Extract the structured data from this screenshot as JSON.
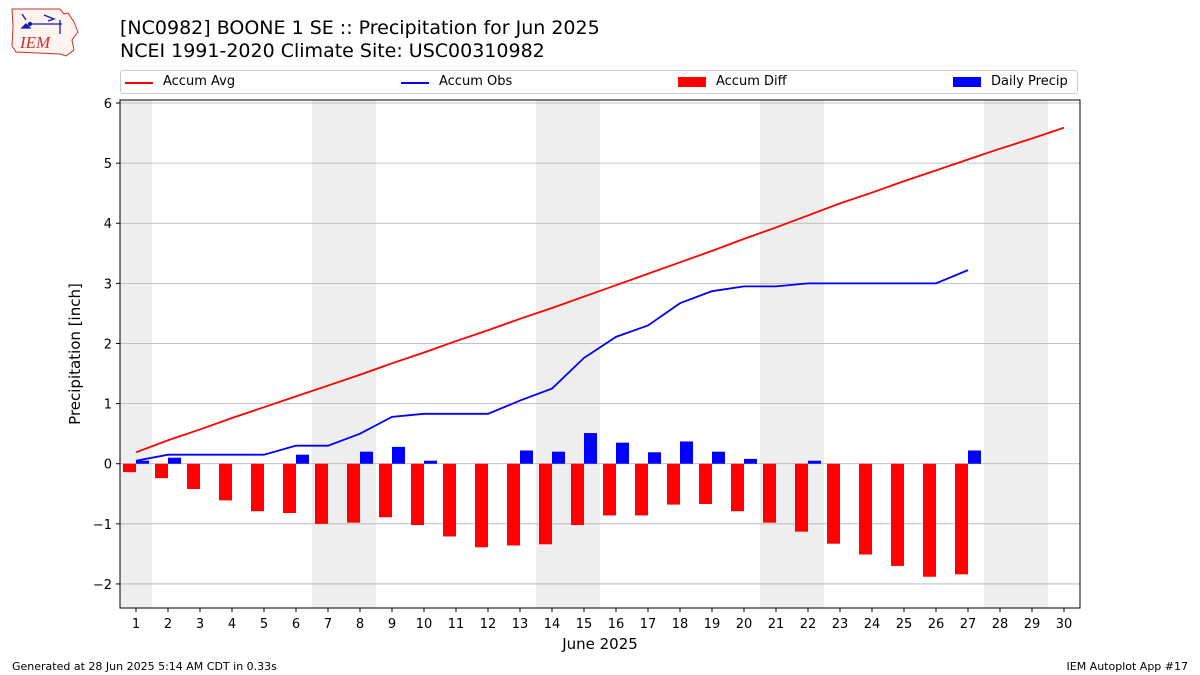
{
  "header": {
    "title_line1": "[NC0982] BOONE 1 SE :: Precipitation for Jun 2025",
    "title_line2": "NCEI 1991-2020 Climate Site: USC00310982",
    "logo_text": "IEM"
  },
  "colors": {
    "accum_avg": "#ff0000",
    "accum_obs": "#0000ff",
    "accum_diff": "#ff0000",
    "daily_precip": "#0000ff",
    "weekend_shade": "#eeeeee",
    "grid": "#b0b0b0"
  },
  "chart_data": {
    "type": "bar",
    "title": "[NC0982] BOONE 1 SE :: Precipitation for Jun 2025",
    "subtitle": "NCEI 1991-2020 Climate Site: USC00310982",
    "xlabel": "June 2025",
    "ylabel": "Precipitation [inch]",
    "ylim": [
      -2.4,
      6.05
    ],
    "xlim": [
      0.5,
      30.5
    ],
    "yticks": [
      -2,
      -1,
      0,
      1,
      2,
      3,
      4,
      5,
      6
    ],
    "ytick_labels": [
      "−2",
      "−1",
      "0",
      "1",
      "2",
      "3",
      "4",
      "5",
      "6"
    ],
    "categories": [
      "1",
      "2",
      "3",
      "4",
      "5",
      "6",
      "7",
      "8",
      "9",
      "10",
      "11",
      "12",
      "13",
      "14",
      "15",
      "16",
      "17",
      "18",
      "19",
      "20",
      "21",
      "22",
      "23",
      "24",
      "25",
      "26",
      "27",
      "28",
      "29",
      "30"
    ],
    "grid": true,
    "legend_position": "top",
    "weekend_shading": [
      [
        0.5,
        1.5
      ],
      [
        6.5,
        8.5
      ],
      [
        13.5,
        15.5
      ],
      [
        20.5,
        22.5
      ],
      [
        27.5,
        29.5
      ]
    ],
    "legend": [
      "Accum Avg",
      "Accum Obs",
      "Accum Diff",
      "Daily Precip"
    ],
    "series": [
      {
        "name": "Accum Avg",
        "kind": "line",
        "values": [
          0.19,
          0.39,
          0.57,
          0.76,
          0.94,
          1.12,
          1.3,
          1.48,
          1.67,
          1.85,
          2.04,
          2.22,
          2.41,
          2.59,
          2.78,
          2.97,
          3.16,
          3.35,
          3.54,
          3.74,
          3.93,
          4.13,
          4.33,
          4.51,
          4.7,
          4.88,
          5.06,
          5.24,
          5.41,
          5.59
        ]
      },
      {
        "name": "Accum Obs",
        "kind": "line",
        "values": [
          0.05,
          0.15,
          0.15,
          0.15,
          0.15,
          0.3,
          0.3,
          0.5,
          0.78,
          0.83,
          0.83,
          0.83,
          1.05,
          1.25,
          1.76,
          2.11,
          2.3,
          2.67,
          2.87,
          2.95,
          2.95,
          3.0,
          3.0,
          3.0,
          3.0,
          3.0,
          3.22,
          null,
          null,
          null
        ]
      },
      {
        "name": "Accum Diff",
        "kind": "bar",
        "values": [
          -0.14,
          -0.24,
          -0.42,
          -0.61,
          -0.79,
          -0.82,
          -1.0,
          -0.98,
          -0.89,
          -1.02,
          -1.21,
          -1.39,
          -1.36,
          -1.34,
          -1.02,
          -0.86,
          -0.86,
          -0.68,
          -0.67,
          -0.79,
          -0.98,
          -1.13,
          -1.33,
          -1.51,
          -1.7,
          -1.88,
          -1.84,
          null,
          null,
          null
        ]
      },
      {
        "name": "Daily Precip",
        "kind": "bar",
        "values": [
          0.05,
          0.1,
          0.0,
          0.0,
          0.0,
          0.15,
          0.0,
          0.2,
          0.28,
          0.05,
          0.0,
          0.0,
          0.22,
          0.2,
          0.51,
          0.35,
          0.19,
          0.37,
          0.2,
          0.08,
          0.0,
          0.05,
          0.0,
          0.0,
          0.0,
          0.0,
          0.22,
          null,
          null,
          null
        ]
      }
    ]
  },
  "footer": {
    "left": "Generated at 28 Jun 2025 5:14 AM CDT in 0.33s",
    "right": "IEM Autoplot App #17"
  }
}
